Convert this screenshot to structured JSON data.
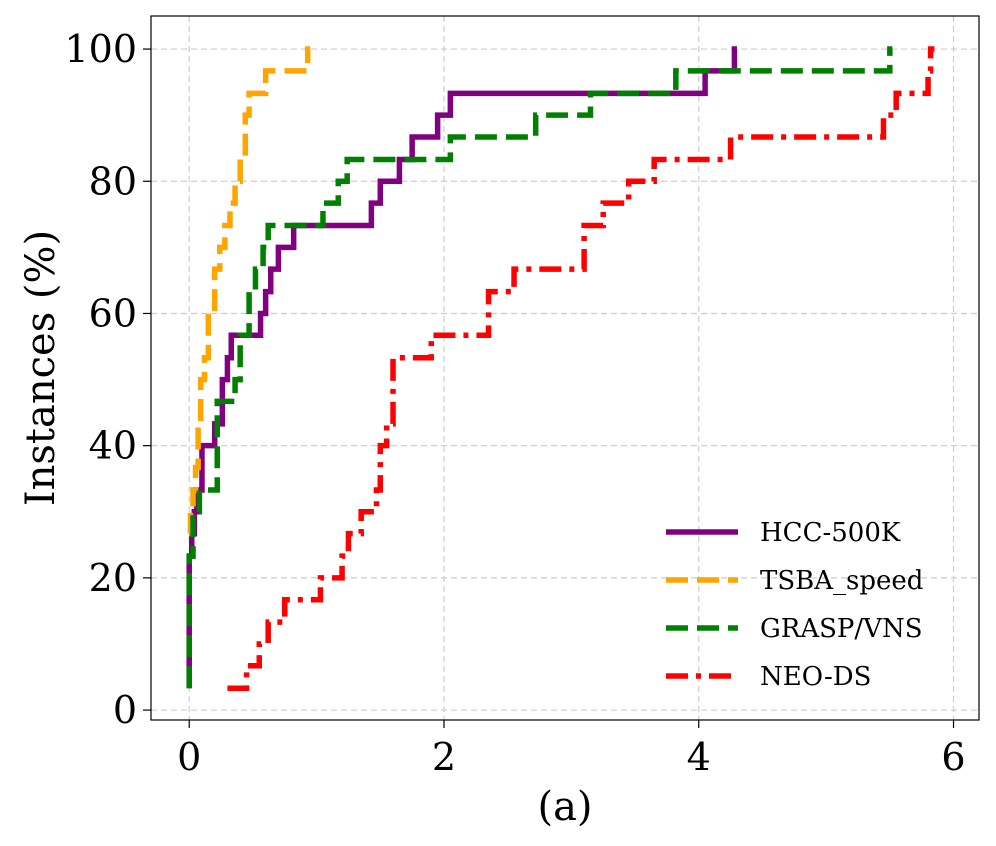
{
  "chart_data": {
    "type": "line",
    "step": true,
    "title": "",
    "xlabel": "(a)",
    "ylabel": "Instances (%)",
    "xlim": [
      -0.3,
      6.2
    ],
    "ylim": [
      -1.5,
      105
    ],
    "xticks": [
      0,
      2,
      4,
      6
    ],
    "yticks": [
      0,
      20,
      40,
      60,
      80,
      100
    ],
    "xtick_labels": [
      "0",
      "2",
      "4",
      "6"
    ],
    "ytick_labels": [
      "0",
      "20",
      "40",
      "60",
      "80",
      "100"
    ],
    "grid": true,
    "legend_position": "lower-right",
    "series": [
      {
        "name": "HCC-500K",
        "color": "#800080",
        "dash": "solid",
        "x": [
          0,
          0,
          0.02,
          0.04,
          0.06,
          0.1,
          0.2,
          0.26,
          0.3,
          0.33,
          0.56,
          0.6,
          0.64,
          0.7,
          0.82,
          0.87,
          1.43,
          1.5,
          1.65,
          1.75,
          1.95,
          2.05,
          2.1,
          4.05,
          4.28,
          4.3
        ],
        "y": [
          3.3,
          23.3,
          26.7,
          30,
          33.3,
          40,
          43.3,
          50,
          53.3,
          56.7,
          60,
          63.3,
          66.7,
          70,
          73.3,
          73.3,
          76.7,
          80,
          83.3,
          86.7,
          90,
          93.3,
          93.3,
          96.7,
          100,
          100
        ]
      },
      {
        "name": "TSBA_speed",
        "color": "#FFA500",
        "dash": "dashed",
        "x": [
          0,
          0.01,
          0.03,
          0.05,
          0.07,
          0.09,
          0.12,
          0.15,
          0.2,
          0.24,
          0.28,
          0.32,
          0.36,
          0.4,
          0.44,
          0.47,
          0.5,
          0.6,
          0.93,
          0.95
        ],
        "y": [
          26.7,
          30,
          33.3,
          36.7,
          43.3,
          50,
          53.3,
          60,
          66.7,
          70,
          73.3,
          76.7,
          80,
          83.3,
          90,
          93.3,
          93.3,
          96.7,
          100,
          100
        ]
      },
      {
        "name": "GRASP/VNS",
        "color": "#008000",
        "dash": "dashed",
        "x": [
          0,
          0,
          0.03,
          0.08,
          0.22,
          0.36,
          0.4,
          0.47,
          0.52,
          0.58,
          0.62,
          1.05,
          1.17,
          1.24,
          1.7,
          2.05,
          2.72,
          3.15,
          3.82,
          3.85,
          5.5,
          5.52
        ],
        "y": [
          3.3,
          23.3,
          30,
          33.3,
          46.7,
          50,
          56.7,
          63.3,
          66.7,
          70,
          73.3,
          76.7,
          80,
          83.3,
          83.3,
          86.7,
          90,
          93.3,
          96.7,
          96.7,
          100,
          100
        ]
      },
      {
        "name": "NEO-DS",
        "color": "#FF0000",
        "dash": "dashdot",
        "x": [
          0.3,
          0.45,
          0.55,
          0.62,
          0.75,
          1.03,
          1.2,
          1.25,
          1.35,
          1.47,
          1.5,
          1.55,
          1.6,
          1.9,
          2.35,
          2.55,
          3.1,
          3.25,
          3.45,
          3.55,
          3.65,
          4.25,
          5.45,
          5.55,
          5.75,
          5.8,
          5.82,
          5.85
        ],
        "y": [
          3.3,
          6.7,
          10,
          13.3,
          16.7,
          20,
          23.3,
          26.7,
          30,
          33.3,
          40,
          43.3,
          53.3,
          56.7,
          63.3,
          66.7,
          73.3,
          76.7,
          80,
          80,
          83.3,
          86.7,
          90,
          93.3,
          93.3,
          96.7,
          100,
          100
        ]
      }
    ]
  }
}
